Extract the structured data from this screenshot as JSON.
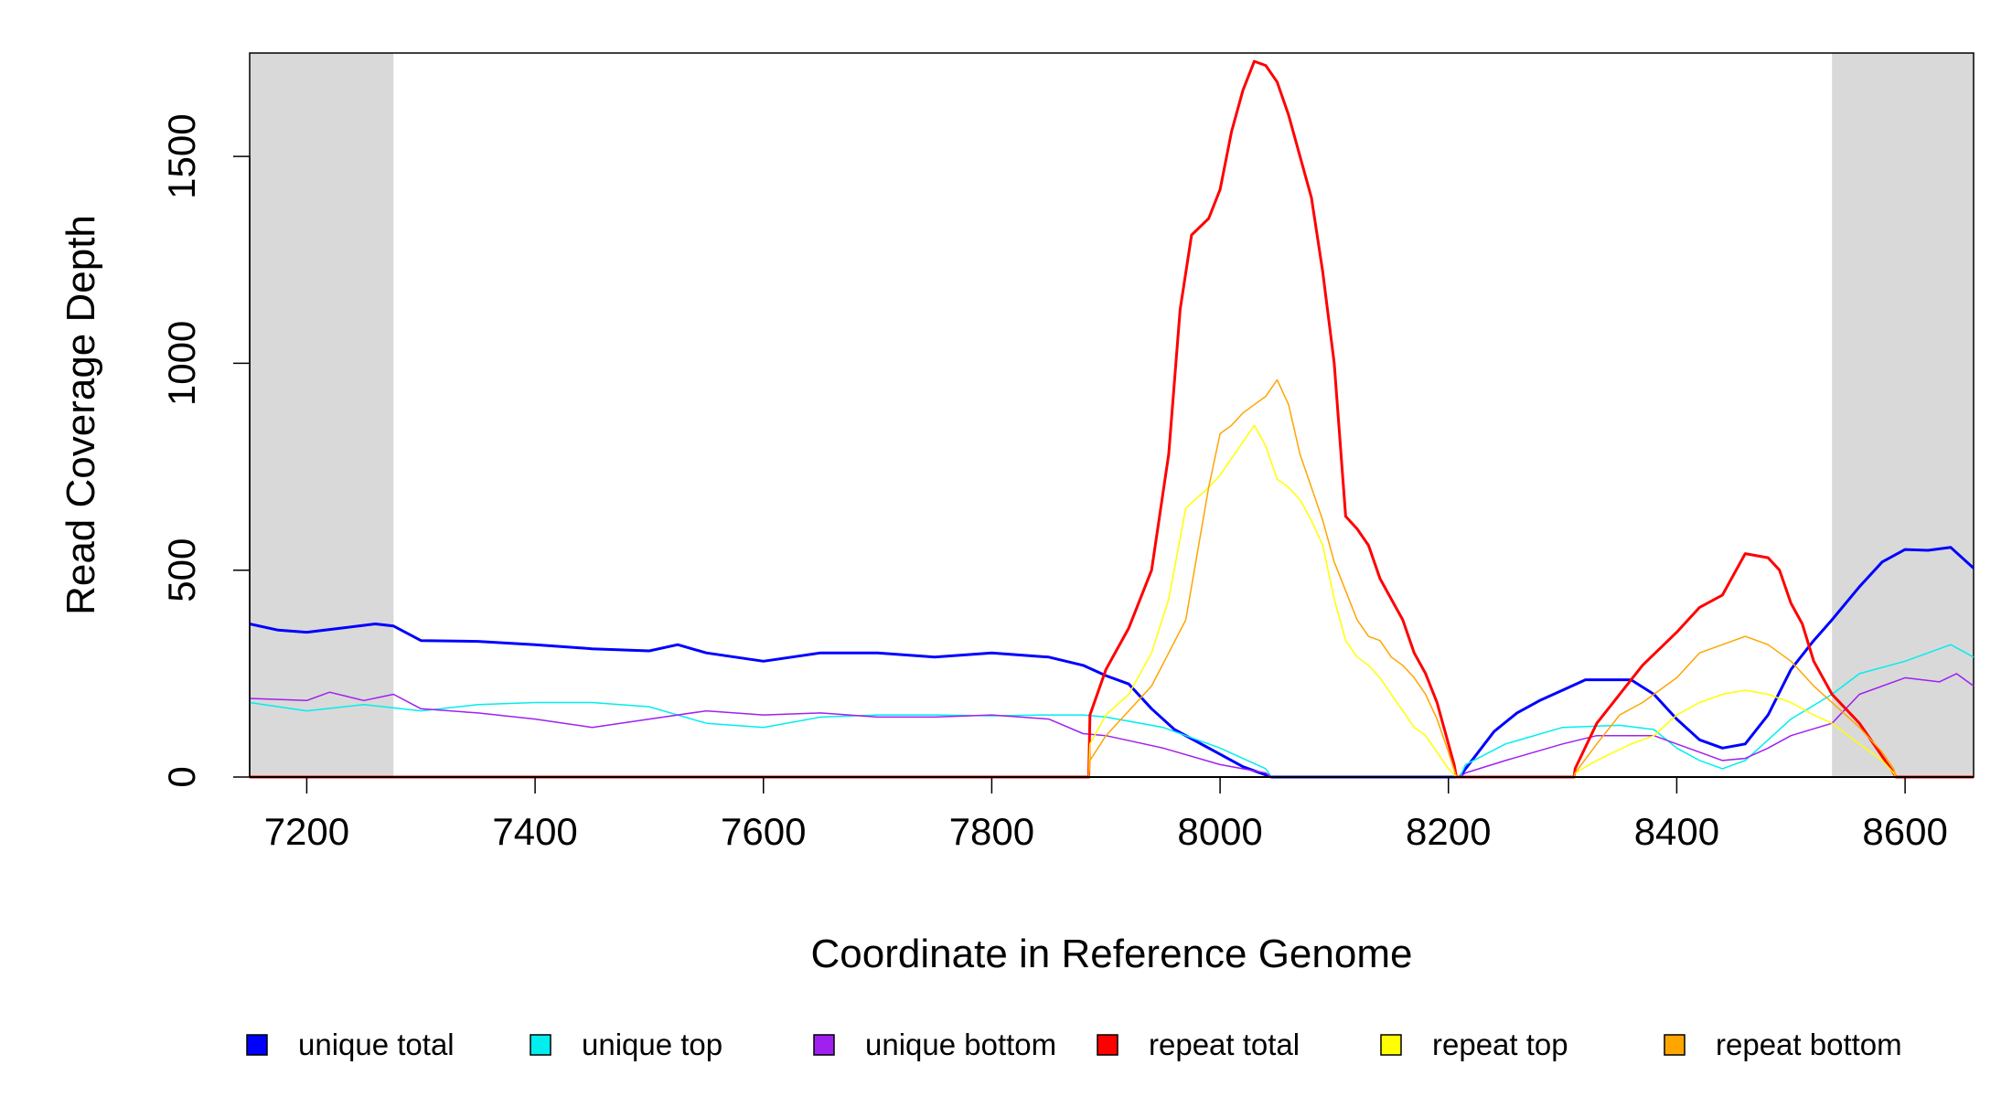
{
  "chart_data": {
    "type": "line",
    "xlabel": "Coordinate in Reference Genome",
    "ylabel": "Read Coverage Depth",
    "xlim": [
      7150,
      8660
    ],
    "ylim": [
      0,
      1750
    ],
    "xticks": [
      7200,
      7400,
      7600,
      7800,
      8000,
      8200,
      8400,
      8600
    ],
    "yticks": [
      0,
      500,
      1000,
      1500
    ],
    "shaded_regions": [
      [
        7150,
        7276
      ],
      [
        8536,
        8660
      ]
    ],
    "legend_position": "bottom",
    "series": [
      {
        "name": "unique total",
        "color": "#0000ff",
        "stroke_width": 3,
        "points": [
          [
            7150,
            370
          ],
          [
            7175,
            355
          ],
          [
            7200,
            350
          ],
          [
            7230,
            360
          ],
          [
            7260,
            370
          ],
          [
            7276,
            365
          ],
          [
            7300,
            330
          ],
          [
            7350,
            328
          ],
          [
            7400,
            320
          ],
          [
            7450,
            310
          ],
          [
            7500,
            305
          ],
          [
            7525,
            320
          ],
          [
            7550,
            300
          ],
          [
            7600,
            280
          ],
          [
            7650,
            300
          ],
          [
            7700,
            300
          ],
          [
            7750,
            290
          ],
          [
            7800,
            300
          ],
          [
            7850,
            290
          ],
          [
            7880,
            270
          ],
          [
            7900,
            245
          ],
          [
            7920,
            225
          ],
          [
            7940,
            165
          ],
          [
            7960,
            115
          ],
          [
            7980,
            85
          ],
          [
            8000,
            55
          ],
          [
            8020,
            25
          ],
          [
            8040,
            5
          ],
          [
            8045,
            0
          ],
          [
            8210,
            0
          ],
          [
            8215,
            20
          ],
          [
            8240,
            110
          ],
          [
            8260,
            155
          ],
          [
            8280,
            185
          ],
          [
            8300,
            210
          ],
          [
            8320,
            235
          ],
          [
            8360,
            235
          ],
          [
            8380,
            200
          ],
          [
            8400,
            140
          ],
          [
            8420,
            90
          ],
          [
            8440,
            70
          ],
          [
            8460,
            80
          ],
          [
            8480,
            150
          ],
          [
            8500,
            260
          ],
          [
            8520,
            330
          ],
          [
            8536,
            380
          ],
          [
            8560,
            460
          ],
          [
            8580,
            520
          ],
          [
            8600,
            550
          ],
          [
            8620,
            548
          ],
          [
            8640,
            555
          ],
          [
            8660,
            505
          ]
        ]
      },
      {
        "name": "unique top",
        "color": "#00eeee",
        "stroke_width": 1.5,
        "points": [
          [
            7150,
            180
          ],
          [
            7200,
            160
          ],
          [
            7250,
            175
          ],
          [
            7300,
            160
          ],
          [
            7350,
            175
          ],
          [
            7400,
            180
          ],
          [
            7450,
            180
          ],
          [
            7500,
            170
          ],
          [
            7550,
            130
          ],
          [
            7600,
            120
          ],
          [
            7650,
            145
          ],
          [
            7700,
            150
          ],
          [
            7750,
            150
          ],
          [
            7800,
            148
          ],
          [
            7850,
            150
          ],
          [
            7880,
            150
          ],
          [
            7900,
            145
          ],
          [
            7950,
            120
          ],
          [
            8000,
            70
          ],
          [
            8040,
            20
          ],
          [
            8045,
            0
          ],
          [
            8210,
            0
          ],
          [
            8215,
            30
          ],
          [
            8250,
            80
          ],
          [
            8300,
            120
          ],
          [
            8350,
            125
          ],
          [
            8380,
            115
          ],
          [
            8400,
            70
          ],
          [
            8420,
            40
          ],
          [
            8440,
            20
          ],
          [
            8460,
            40
          ],
          [
            8480,
            90
          ],
          [
            8500,
            140
          ],
          [
            8536,
            200
          ],
          [
            8560,
            250
          ],
          [
            8600,
            280
          ],
          [
            8640,
            320
          ],
          [
            8660,
            290
          ]
        ]
      },
      {
        "name": "unique bottom",
        "color": "#a020f0",
        "stroke_width": 1.5,
        "points": [
          [
            7150,
            190
          ],
          [
            7200,
            185
          ],
          [
            7220,
            205
          ],
          [
            7250,
            185
          ],
          [
            7276,
            200
          ],
          [
            7300,
            165
          ],
          [
            7350,
            155
          ],
          [
            7400,
            140
          ],
          [
            7450,
            120
          ],
          [
            7500,
            140
          ],
          [
            7550,
            160
          ],
          [
            7600,
            150
          ],
          [
            7650,
            155
          ],
          [
            7700,
            145
          ],
          [
            7750,
            145
          ],
          [
            7800,
            150
          ],
          [
            7850,
            140
          ],
          [
            7880,
            105
          ],
          [
            7900,
            100
          ],
          [
            7950,
            70
          ],
          [
            8000,
            30
          ],
          [
            8040,
            10
          ],
          [
            8045,
            0
          ],
          [
            8210,
            0
          ],
          [
            8215,
            10
          ],
          [
            8250,
            40
          ],
          [
            8300,
            80
          ],
          [
            8330,
            100
          ],
          [
            8380,
            100
          ],
          [
            8400,
            80
          ],
          [
            8420,
            60
          ],
          [
            8440,
            40
          ],
          [
            8460,
            45
          ],
          [
            8480,
            70
          ],
          [
            8500,
            100
          ],
          [
            8536,
            130
          ],
          [
            8560,
            200
          ],
          [
            8600,
            240
          ],
          [
            8630,
            230
          ],
          [
            8645,
            250
          ],
          [
            8660,
            220
          ]
        ]
      },
      {
        "name": "repeat total",
        "color": "#ff0000",
        "stroke_width": 3,
        "points": [
          [
            7150,
            0
          ],
          [
            7885,
            0
          ],
          [
            7886,
            150
          ],
          [
            7900,
            260
          ],
          [
            7920,
            360
          ],
          [
            7940,
            500
          ],
          [
            7955,
            780
          ],
          [
            7965,
            1130
          ],
          [
            7975,
            1310
          ],
          [
            7990,
            1350
          ],
          [
            8000,
            1420
          ],
          [
            8010,
            1560
          ],
          [
            8020,
            1660
          ],
          [
            8030,
            1730
          ],
          [
            8040,
            1720
          ],
          [
            8050,
            1680
          ],
          [
            8060,
            1600
          ],
          [
            8070,
            1500
          ],
          [
            8080,
            1400
          ],
          [
            8090,
            1220
          ],
          [
            8100,
            1000
          ],
          [
            8110,
            630
          ],
          [
            8120,
            600
          ],
          [
            8130,
            560
          ],
          [
            8140,
            480
          ],
          [
            8150,
            430
          ],
          [
            8160,
            380
          ],
          [
            8170,
            300
          ],
          [
            8180,
            250
          ],
          [
            8190,
            180
          ],
          [
            8200,
            80
          ],
          [
            8205,
            30
          ],
          [
            8207,
            0
          ],
          [
            8310,
            0
          ],
          [
            8311,
            20
          ],
          [
            8330,
            130
          ],
          [
            8350,
            200
          ],
          [
            8370,
            270
          ],
          [
            8400,
            350
          ],
          [
            8420,
            410
          ],
          [
            8440,
            440
          ],
          [
            8460,
            540
          ],
          [
            8480,
            530
          ],
          [
            8490,
            500
          ],
          [
            8500,
            420
          ],
          [
            8510,
            370
          ],
          [
            8520,
            280
          ],
          [
            8536,
            200
          ],
          [
            8560,
            130
          ],
          [
            8580,
            50
          ],
          [
            8590,
            10
          ],
          [
            8592,
            0
          ],
          [
            8660,
            0
          ]
        ]
      },
      {
        "name": "repeat top",
        "color": "#ffff00",
        "stroke_width": 1.5,
        "points": [
          [
            7150,
            0
          ],
          [
            7885,
            0
          ],
          [
            7886,
            80
          ],
          [
            7900,
            150
          ],
          [
            7920,
            200
          ],
          [
            7940,
            300
          ],
          [
            7955,
            430
          ],
          [
            7970,
            650
          ],
          [
            7990,
            700
          ],
          [
            8000,
            730
          ],
          [
            8010,
            770
          ],
          [
            8020,
            810
          ],
          [
            8030,
            850
          ],
          [
            8040,
            800
          ],
          [
            8050,
            720
          ],
          [
            8060,
            700
          ],
          [
            8070,
            670
          ],
          [
            8080,
            620
          ],
          [
            8090,
            560
          ],
          [
            8100,
            430
          ],
          [
            8110,
            330
          ],
          [
            8120,
            290
          ],
          [
            8130,
            270
          ],
          [
            8140,
            240
          ],
          [
            8150,
            200
          ],
          [
            8160,
            160
          ],
          [
            8170,
            120
          ],
          [
            8180,
            100
          ],
          [
            8190,
            60
          ],
          [
            8200,
            20
          ],
          [
            8207,
            0
          ],
          [
            8310,
            0
          ],
          [
            8311,
            10
          ],
          [
            8330,
            40
          ],
          [
            8360,
            80
          ],
          [
            8380,
            100
          ],
          [
            8400,
            150
          ],
          [
            8420,
            180
          ],
          [
            8440,
            200
          ],
          [
            8460,
            210
          ],
          [
            8480,
            200
          ],
          [
            8500,
            180
          ],
          [
            8520,
            150
          ],
          [
            8536,
            130
          ],
          [
            8560,
            80
          ],
          [
            8580,
            40
          ],
          [
            8590,
            10
          ],
          [
            8592,
            0
          ],
          [
            8660,
            0
          ]
        ]
      },
      {
        "name": "repeat bottom",
        "color": "#ffa500",
        "stroke_width": 1.5,
        "points": [
          [
            7150,
            0
          ],
          [
            7885,
            0
          ],
          [
            7886,
            40
          ],
          [
            7900,
            100
          ],
          [
            7920,
            160
          ],
          [
            7940,
            220
          ],
          [
            7955,
            300
          ],
          [
            7970,
            380
          ],
          [
            7990,
            700
          ],
          [
            8000,
            830
          ],
          [
            8010,
            850
          ],
          [
            8020,
            880
          ],
          [
            8030,
            900
          ],
          [
            8040,
            920
          ],
          [
            8050,
            960
          ],
          [
            8060,
            900
          ],
          [
            8070,
            780
          ],
          [
            8080,
            700
          ],
          [
            8090,
            620
          ],
          [
            8100,
            520
          ],
          [
            8110,
            450
          ],
          [
            8120,
            380
          ],
          [
            8130,
            340
          ],
          [
            8140,
            330
          ],
          [
            8150,
            290
          ],
          [
            8160,
            270
          ],
          [
            8170,
            240
          ],
          [
            8180,
            200
          ],
          [
            8190,
            140
          ],
          [
            8200,
            60
          ],
          [
            8207,
            0
          ],
          [
            8310,
            0
          ],
          [
            8311,
            10
          ],
          [
            8330,
            80
          ],
          [
            8350,
            150
          ],
          [
            8370,
            180
          ],
          [
            8400,
            240
          ],
          [
            8420,
            300
          ],
          [
            8440,
            320
          ],
          [
            8460,
            340
          ],
          [
            8480,
            320
          ],
          [
            8500,
            280
          ],
          [
            8520,
            220
          ],
          [
            8536,
            180
          ],
          [
            8560,
            120
          ],
          [
            8580,
            60
          ],
          [
            8590,
            20
          ],
          [
            8592,
            0
          ],
          [
            8660,
            0
          ]
        ]
      }
    ]
  }
}
